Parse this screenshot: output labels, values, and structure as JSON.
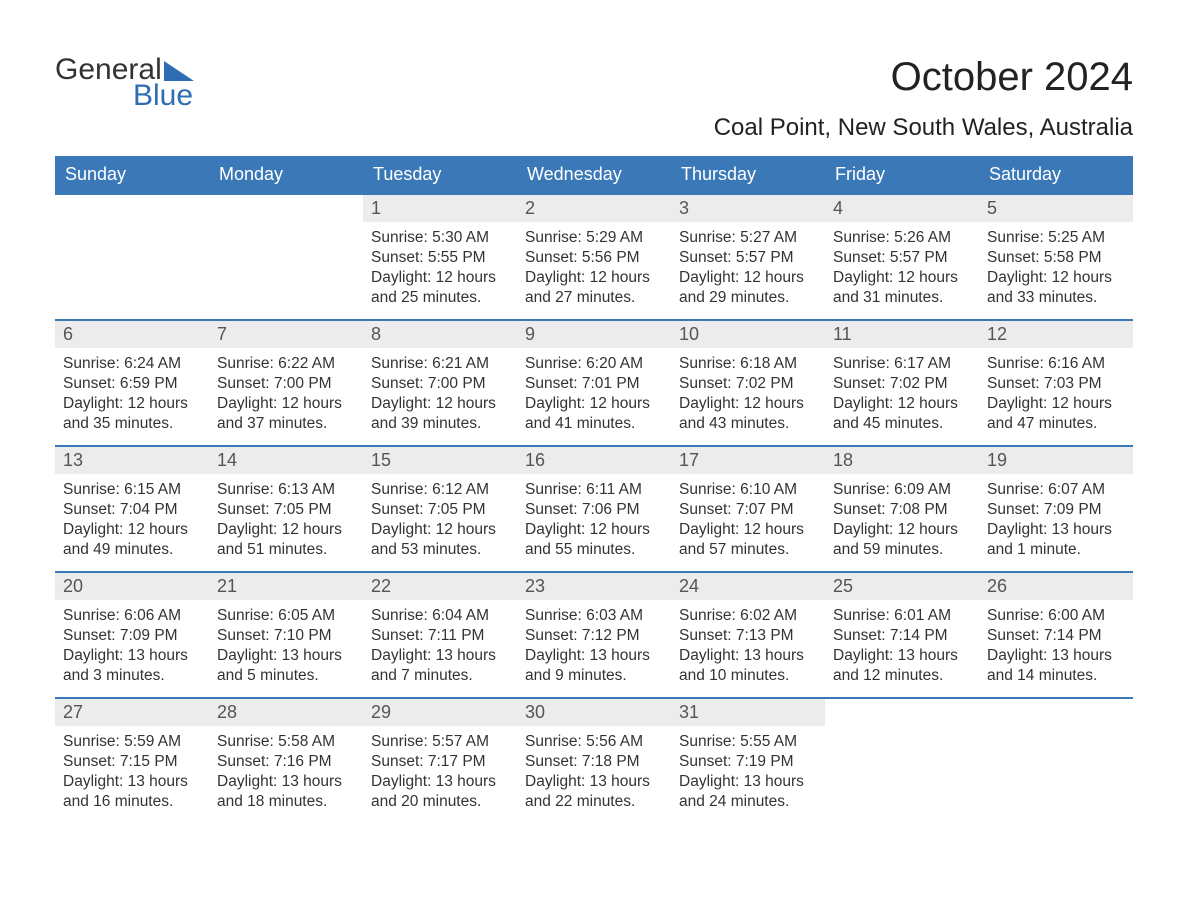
{
  "brand": {
    "line1": "General",
    "line2": "Blue",
    "accent_color": "#2f6db3",
    "text_color": "#333333"
  },
  "title": "October 2024",
  "location": "Coal Point, New South Wales, Australia",
  "colors": {
    "header_bg": "#3b78b7",
    "header_text": "#ffffff",
    "daynum_bg": "#ececec",
    "daynum_text": "#555555",
    "body_text": "#333333",
    "rule": "#3b78b7",
    "page_bg": "#ffffff"
  },
  "typography": {
    "title_fontsize_pt": 30,
    "location_fontsize_pt": 18,
    "dow_fontsize_pt": 14,
    "daynum_fontsize_pt": 14,
    "body_fontsize_pt": 12
  },
  "days_of_week": [
    "Sunday",
    "Monday",
    "Tuesday",
    "Wednesday",
    "Thursday",
    "Friday",
    "Saturday"
  ],
  "labels": {
    "sunrise": "Sunrise:",
    "sunset": "Sunset:",
    "daylight": "Daylight:"
  },
  "weeks": [
    [
      {
        "empty": true
      },
      {
        "empty": true
      },
      {
        "n": "1",
        "sr": "5:30 AM",
        "ss": "5:55 PM",
        "dl1": "12 hours",
        "dl2": "and 25 minutes."
      },
      {
        "n": "2",
        "sr": "5:29 AM",
        "ss": "5:56 PM",
        "dl1": "12 hours",
        "dl2": "and 27 minutes."
      },
      {
        "n": "3",
        "sr": "5:27 AM",
        "ss": "5:57 PM",
        "dl1": "12 hours",
        "dl2": "and 29 minutes."
      },
      {
        "n": "4",
        "sr": "5:26 AM",
        "ss": "5:57 PM",
        "dl1": "12 hours",
        "dl2": "and 31 minutes."
      },
      {
        "n": "5",
        "sr": "5:25 AM",
        "ss": "5:58 PM",
        "dl1": "12 hours",
        "dl2": "and 33 minutes."
      }
    ],
    [
      {
        "n": "6",
        "sr": "6:24 AM",
        "ss": "6:59 PM",
        "dl1": "12 hours",
        "dl2": "and 35 minutes."
      },
      {
        "n": "7",
        "sr": "6:22 AM",
        "ss": "7:00 PM",
        "dl1": "12 hours",
        "dl2": "and 37 minutes."
      },
      {
        "n": "8",
        "sr": "6:21 AM",
        "ss": "7:00 PM",
        "dl1": "12 hours",
        "dl2": "and 39 minutes."
      },
      {
        "n": "9",
        "sr": "6:20 AM",
        "ss": "7:01 PM",
        "dl1": "12 hours",
        "dl2": "and 41 minutes."
      },
      {
        "n": "10",
        "sr": "6:18 AM",
        "ss": "7:02 PM",
        "dl1": "12 hours",
        "dl2": "and 43 minutes."
      },
      {
        "n": "11",
        "sr": "6:17 AM",
        "ss": "7:02 PM",
        "dl1": "12 hours",
        "dl2": "and 45 minutes."
      },
      {
        "n": "12",
        "sr": "6:16 AM",
        "ss": "7:03 PM",
        "dl1": "12 hours",
        "dl2": "and 47 minutes."
      }
    ],
    [
      {
        "n": "13",
        "sr": "6:15 AM",
        "ss": "7:04 PM",
        "dl1": "12 hours",
        "dl2": "and 49 minutes."
      },
      {
        "n": "14",
        "sr": "6:13 AM",
        "ss": "7:05 PM",
        "dl1": "12 hours",
        "dl2": "and 51 minutes."
      },
      {
        "n": "15",
        "sr": "6:12 AM",
        "ss": "7:05 PM",
        "dl1": "12 hours",
        "dl2": "and 53 minutes."
      },
      {
        "n": "16",
        "sr": "6:11 AM",
        "ss": "7:06 PM",
        "dl1": "12 hours",
        "dl2": "and 55 minutes."
      },
      {
        "n": "17",
        "sr": "6:10 AM",
        "ss": "7:07 PM",
        "dl1": "12 hours",
        "dl2": "and 57 minutes."
      },
      {
        "n": "18",
        "sr": "6:09 AM",
        "ss": "7:08 PM",
        "dl1": "12 hours",
        "dl2": "and 59 minutes."
      },
      {
        "n": "19",
        "sr": "6:07 AM",
        "ss": "7:09 PM",
        "dl1": "13 hours",
        "dl2": "and 1 minute."
      }
    ],
    [
      {
        "n": "20",
        "sr": "6:06 AM",
        "ss": "7:09 PM",
        "dl1": "13 hours",
        "dl2": "and 3 minutes."
      },
      {
        "n": "21",
        "sr": "6:05 AM",
        "ss": "7:10 PM",
        "dl1": "13 hours",
        "dl2": "and 5 minutes."
      },
      {
        "n": "22",
        "sr": "6:04 AM",
        "ss": "7:11 PM",
        "dl1": "13 hours",
        "dl2": "and 7 minutes."
      },
      {
        "n": "23",
        "sr": "6:03 AM",
        "ss": "7:12 PM",
        "dl1": "13 hours",
        "dl2": "and 9 minutes."
      },
      {
        "n": "24",
        "sr": "6:02 AM",
        "ss": "7:13 PM",
        "dl1": "13 hours",
        "dl2": "and 10 minutes."
      },
      {
        "n": "25",
        "sr": "6:01 AM",
        "ss": "7:14 PM",
        "dl1": "13 hours",
        "dl2": "and 12 minutes."
      },
      {
        "n": "26",
        "sr": "6:00 AM",
        "ss": "7:14 PM",
        "dl1": "13 hours",
        "dl2": "and 14 minutes."
      }
    ],
    [
      {
        "n": "27",
        "sr": "5:59 AM",
        "ss": "7:15 PM",
        "dl1": "13 hours",
        "dl2": "and 16 minutes."
      },
      {
        "n": "28",
        "sr": "5:58 AM",
        "ss": "7:16 PM",
        "dl1": "13 hours",
        "dl2": "and 18 minutes."
      },
      {
        "n": "29",
        "sr": "5:57 AM",
        "ss": "7:17 PM",
        "dl1": "13 hours",
        "dl2": "and 20 minutes."
      },
      {
        "n": "30",
        "sr": "5:56 AM",
        "ss": "7:18 PM",
        "dl1": "13 hours",
        "dl2": "and 22 minutes."
      },
      {
        "n": "31",
        "sr": "5:55 AM",
        "ss": "7:19 PM",
        "dl1": "13 hours",
        "dl2": "and 24 minutes."
      },
      {
        "empty": true
      },
      {
        "empty": true
      }
    ]
  ]
}
